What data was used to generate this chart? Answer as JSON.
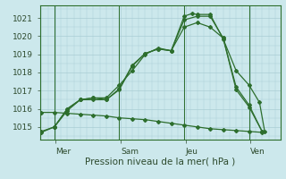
{
  "background_color": "#cce8ec",
  "grid_color": "#aacdd4",
  "line_color": "#2d6e2d",
  "vline_color": "#2d6e2d",
  "ylim": [
    1014.3,
    1021.7
  ],
  "yticks": [
    1015,
    1016,
    1017,
    1018,
    1019,
    1020,
    1021
  ],
  "xlabel": "Pression niveau de la mer( hPa )",
  "day_labels": [
    "Mer",
    "Sam",
    "Jeu",
    "Ven"
  ],
  "day_positions": [
    0.55,
    3.05,
    5.55,
    8.05
  ],
  "vline_positions": [
    0.5,
    3.0,
    5.5,
    8.0
  ],
  "xlim": [
    -0.05,
    9.2
  ],
  "series": [
    {
      "x": [
        0.0,
        0.5,
        1.0,
        1.5,
        2.0,
        2.5,
        3.0,
        3.5,
        4.0,
        4.5,
        5.0,
        5.5,
        5.8,
        6.0,
        6.5,
        7.0,
        7.5,
        8.0,
        8.4,
        8.6
      ],
      "y": [
        1014.7,
        1015.0,
        1016.0,
        1016.5,
        1016.6,
        1016.6,
        1017.3,
        1018.1,
        1019.0,
        1019.35,
        1019.2,
        1021.1,
        1021.25,
        1021.2,
        1021.2,
        1019.85,
        1018.1,
        1017.3,
        1016.35,
        1014.75
      ]
    },
    {
      "x": [
        0.5,
        1.0,
        1.5,
        2.0,
        2.5,
        3.0,
        3.5,
        4.0,
        4.5,
        5.0,
        5.5,
        6.0,
        6.5,
        7.0,
        7.5,
        8.0,
        8.5
      ],
      "y": [
        1015.0,
        1015.9,
        1016.5,
        1016.5,
        1016.5,
        1017.05,
        1018.35,
        1019.05,
        1019.3,
        1019.2,
        1020.9,
        1021.1,
        1021.1,
        1019.9,
        1017.2,
        1016.2,
        1014.75
      ]
    },
    {
      "x": [
        0.0,
        0.5,
        1.0,
        1.5,
        2.0,
        2.5,
        3.0,
        3.5,
        4.0,
        4.5,
        5.0,
        5.5,
        6.0,
        6.5,
        7.0,
        7.5,
        8.0,
        8.5
      ],
      "y": [
        1014.75,
        1015.0,
        1016.0,
        1016.5,
        1016.6,
        1016.5,
        1017.1,
        1018.4,
        1019.05,
        1019.3,
        1019.2,
        1020.5,
        1020.75,
        1020.5,
        1019.9,
        1017.05,
        1016.1,
        1014.75
      ]
    },
    {
      "x": [
        0.0,
        0.5,
        1.0,
        1.5,
        2.0,
        2.5,
        3.0,
        3.5,
        4.0,
        4.5,
        5.0,
        5.5,
        6.0,
        6.5,
        7.0,
        7.5,
        8.0,
        8.5
      ],
      "y": [
        1015.8,
        1015.8,
        1015.75,
        1015.7,
        1015.65,
        1015.6,
        1015.5,
        1015.45,
        1015.4,
        1015.3,
        1015.2,
        1015.1,
        1015.0,
        1014.9,
        1014.85,
        1014.8,
        1014.75,
        1014.7
      ]
    }
  ]
}
